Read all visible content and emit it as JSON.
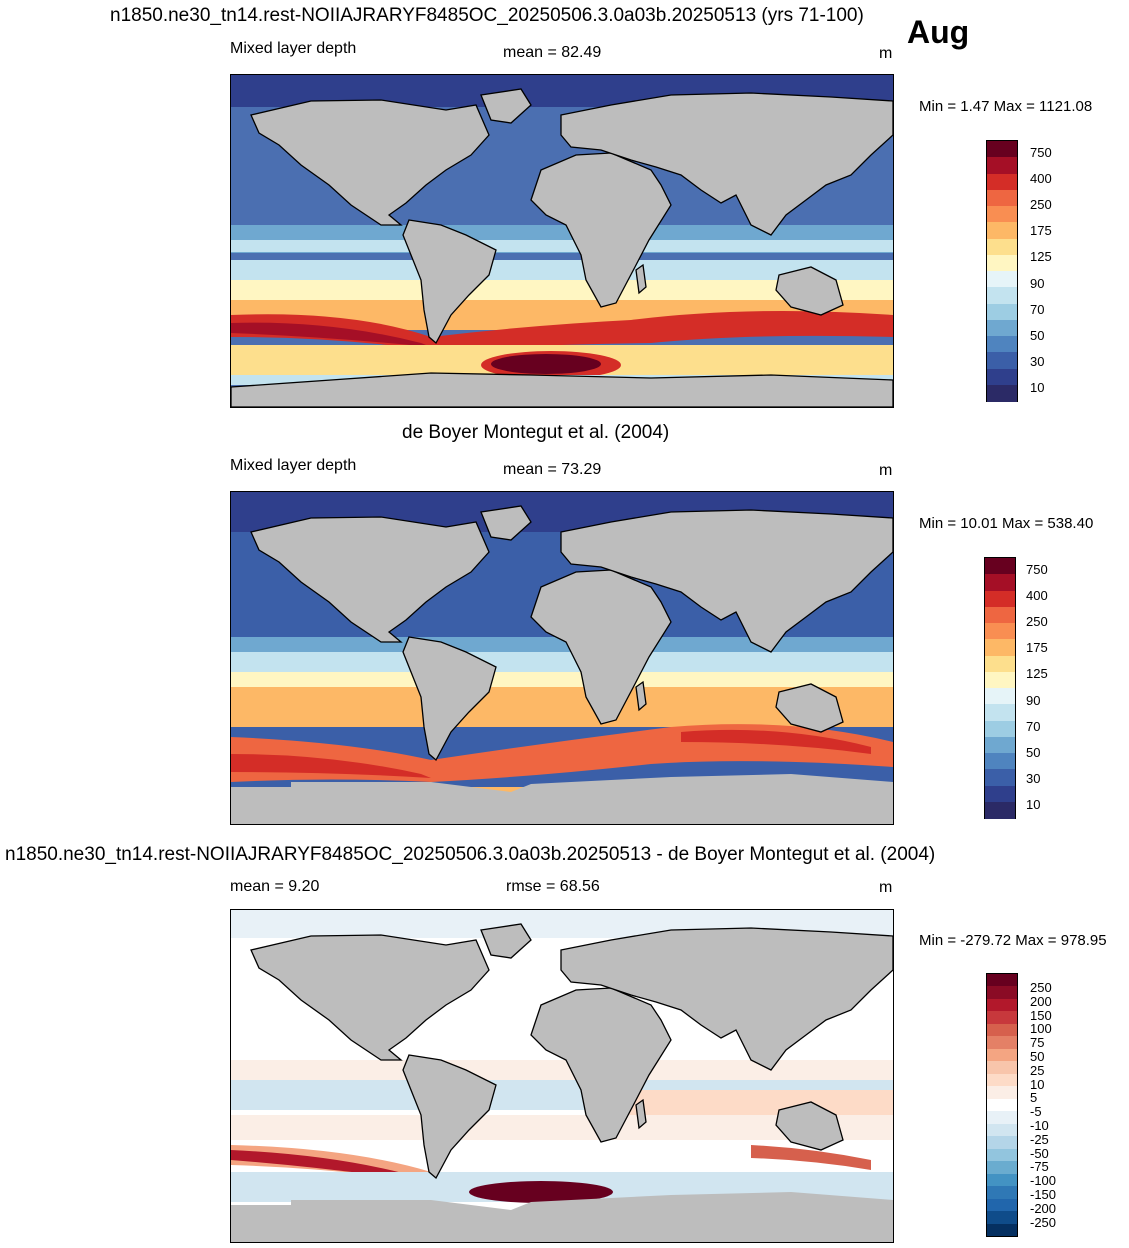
{
  "month": "Aug",
  "panels": [
    {
      "title": "n1850.ne30_tn14.rest-NOIIAJRARYF8485OC_20250506.3.0a03b.20250513 (yrs 71-100)",
      "left_label": "Mixed layer depth",
      "center_label": "mean =  82.49",
      "units": "m",
      "minmax": "Min =   1.47 Max = 1121.08",
      "colorbar": {
        "labels": [
          "750",
          "400",
          "250",
          "175",
          "125",
          "90",
          "70",
          "50",
          "30",
          "10"
        ],
        "colors": [
          "#67001f",
          "#a50f26",
          "#d42d27",
          "#ee6641",
          "#f98e52",
          "#fdb866",
          "#fddf8d",
          "#fff6c2",
          "#e6f4f8",
          "#c3e3ef",
          "#9dcde3",
          "#6fa8d0",
          "#4f84bf",
          "#3b5fa8",
          "#2f3f8c",
          "#2b2a66"
        ]
      }
    },
    {
      "title": "de Boyer Montegut et al. (2004)",
      "left_label": "Mixed layer depth",
      "center_label": "mean =  73.29",
      "units": "m",
      "minmax": "Min =  10.01 Max = 538.40",
      "colorbar": {
        "labels": [
          "750",
          "400",
          "250",
          "175",
          "125",
          "90",
          "70",
          "50",
          "30",
          "10"
        ],
        "colors": [
          "#67001f",
          "#a50f26",
          "#d42d27",
          "#ee6641",
          "#f98e52",
          "#fdb866",
          "#fddf8d",
          "#fff6c2",
          "#e6f4f8",
          "#c3e3ef",
          "#9dcde3",
          "#6fa8d0",
          "#4f84bf",
          "#3b5fa8",
          "#2f3f8c",
          "#2b2a66"
        ]
      }
    },
    {
      "title": "n1850.ne30_tn14.rest-NOIIAJRARYF8485OC_20250506.3.0a03b.20250513 - de Boyer Montegut et al. (2004)",
      "left_label": "mean =   9.20",
      "center_label": "rmse =  68.56",
      "units": "m",
      "minmax": "Min = -279.72 Max = 978.95",
      "colorbar": {
        "labels": [
          "250",
          "200",
          "150",
          "100",
          "75",
          "50",
          "25",
          "10",
          "5",
          "-5",
          "-10",
          "-25",
          "-50",
          "-75",
          "-100",
          "-150",
          "-200",
          "-250"
        ],
        "colors": [
          "#67001f",
          "#8a0b25",
          "#b2182b",
          "#c7383c",
          "#d6604d",
          "#e48066",
          "#f4a582",
          "#f8c5ab",
          "#fddbc7",
          "#fbeee6",
          "#ffffff",
          "#e8f1f7",
          "#d1e5f0",
          "#b4d5e8",
          "#92c5de",
          "#6aaccf",
          "#4393c3",
          "#2f78b5",
          "#2166ac",
          "#0f4c8a",
          "#053061"
        ]
      }
    }
  ]
}
